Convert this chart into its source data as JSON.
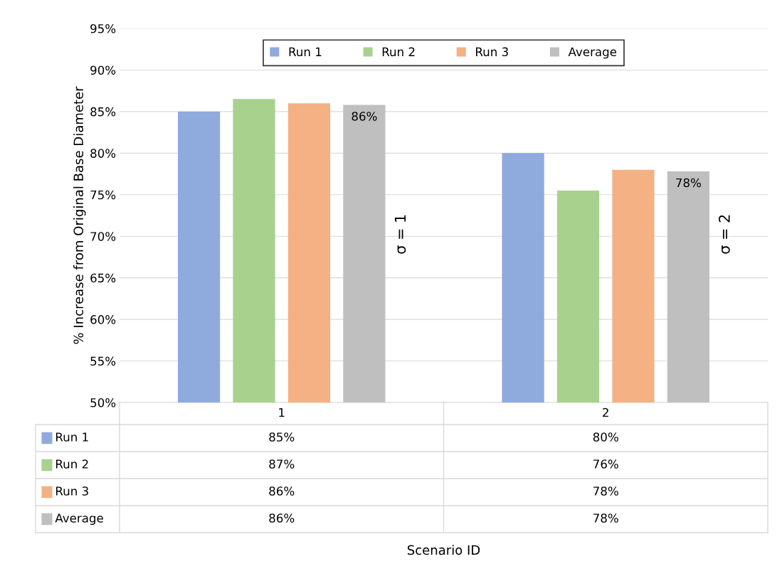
{
  "chart_data": {
    "type": "bar",
    "ylabel": "% Increase from Original Base Diameter",
    "categories": [
      "1",
      "2"
    ],
    "series": [
      {
        "name": "Run 1",
        "color": "#8faadc",
        "values": [
          85,
          80
        ],
        "value_labels": [
          "85%",
          "80%"
        ]
      },
      {
        "name": "Run 2",
        "color": "#a9d18e",
        "values": [
          86.5,
          75.5
        ],
        "value_labels": [
          "87%",
          "76%"
        ]
      },
      {
        "name": "Run 3",
        "color": "#f4b183",
        "values": [
          86,
          78
        ],
        "value_labels": [
          "86%",
          "78%"
        ]
      },
      {
        "name": "Average",
        "color": "#bfbfbf",
        "values": [
          85.8,
          77.8
        ],
        "value_labels": [
          "86%",
          "78%"
        ]
      }
    ],
    "ylim": [
      50,
      95
    ],
    "yticks": [
      {
        "value": 50,
        "label": "50%"
      },
      {
        "value": 55,
        "label": "55%"
      },
      {
        "value": 60,
        "label": "60%"
      },
      {
        "value": 65,
        "label": "65%"
      },
      {
        "value": 70,
        "label": "70%"
      },
      {
        "value": 75,
        "label": "75%"
      },
      {
        "value": 80,
        "label": "80%"
      },
      {
        "value": 85,
        "label": "85%"
      },
      {
        "value": 90,
        "label": "90%"
      },
      {
        "value": 95,
        "label": "95%"
      }
    ],
    "grid": "y",
    "legend": "top",
    "annotations": [
      "86%",
      "78%",
      "σ = 1",
      "σ = 2",
      "Scenario ID"
    ]
  }
}
